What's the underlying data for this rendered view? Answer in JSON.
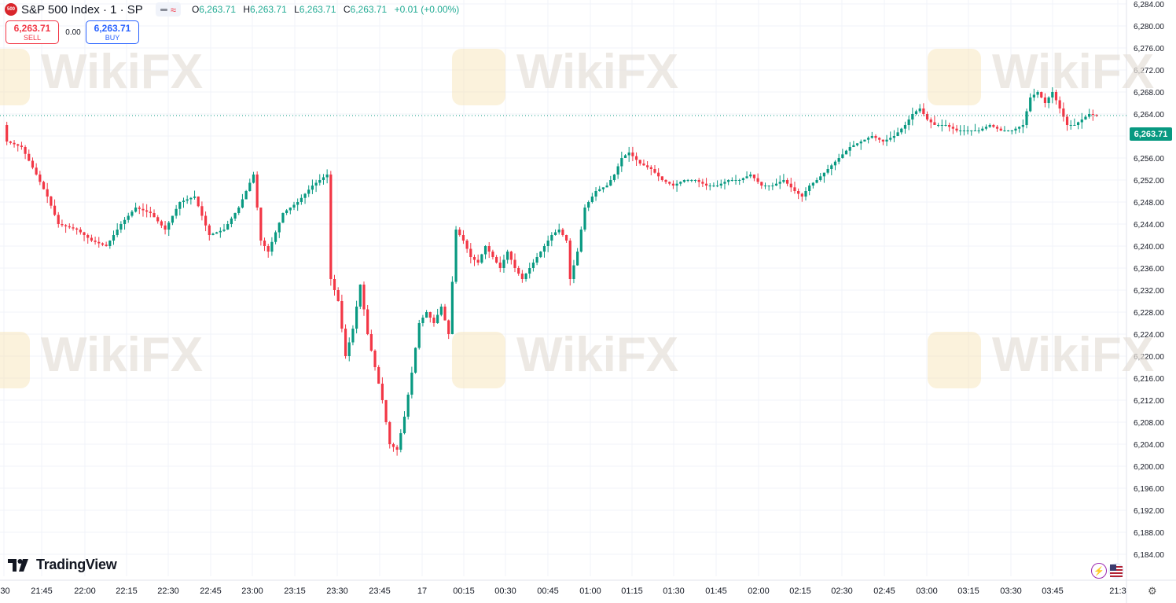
{
  "header": {
    "symbol_badge": "500",
    "title": "S&P 500 Index · 1 · SP",
    "open_label": "O",
    "open": "6,263.71",
    "high_label": "H",
    "high": "6,263.71",
    "low_label": "L",
    "low": "6,263.71",
    "close_label": "C",
    "close": "6,263.71",
    "change": "+0.01 (+0.00%)"
  },
  "trade": {
    "sell_price": "6,263.71",
    "sell_label": "SELL",
    "spread": "0.00",
    "buy_price": "6,263.71",
    "buy_label": "BUY"
  },
  "last_price_tag": "6,263.71",
  "branding": "TradingView",
  "watermark": "WikiFX",
  "colors": {
    "up": "#089981",
    "down": "#f23645",
    "grid": "#f0f3fa",
    "axis_text": "#131722"
  },
  "icons": [
    "lightning-icon",
    "us-flag-icon",
    "settings-icon"
  ],
  "chart_data": {
    "type": "candlestick",
    "title": "S&P 500 Index · 1 · SP",
    "ylim": [
      6182,
      6288
    ],
    "y_ticks": [
      6184,
      6188,
      6192,
      6196,
      6200,
      6204,
      6208,
      6212,
      6216,
      6220,
      6224,
      6228,
      6232,
      6236,
      6240,
      6244,
      6248,
      6252,
      6256,
      6260,
      6264,
      6268,
      6272,
      6276,
      6280,
      6284
    ],
    "y_tick_labels": [
      "6,184.00",
      "6,188.00",
      "6,192.00",
      "6,196.00",
      "6,200.00",
      "6,204.00",
      "6,208.00",
      "6,212.00",
      "6,216.00",
      "6,220.00",
      "6,224.00",
      "6,228.00",
      "6,232.00",
      "6,236.00",
      "6,240.00",
      "6,244.00",
      "6,248.00",
      "6,252.00",
      "6,256.00",
      "6,260.00",
      "6,264.00",
      "6,268.00",
      "6,272.00",
      "6,276.00",
      "6,280.00",
      "6,284.00"
    ],
    "x_tick_labels": [
      ":30",
      "21:45",
      "22:00",
      "22:15",
      "22:30",
      "22:45",
      "23:00",
      "23:15",
      "23:30",
      "23:45",
      "17",
      "00:15",
      "00:30",
      "00:45",
      "01:00",
      "01:15",
      "01:30",
      "01:45",
      "02:00",
      "02:15",
      "02:30",
      "02:45",
      "03:00",
      "03:15",
      "03:30",
      "03:45",
      "21:3"
    ],
    "last_price": 6263.71,
    "price_path": [
      [
        0,
        6262
      ],
      [
        1,
        6259
      ],
      [
        5,
        6258
      ],
      [
        9,
        6253
      ],
      [
        12,
        6249
      ],
      [
        15,
        6244
      ],
      [
        20,
        6243
      ],
      [
        24,
        6241
      ],
      [
        28,
        6240
      ],
      [
        32,
        6244
      ],
      [
        36,
        6247
      ],
      [
        40,
        6246
      ],
      [
        44,
        6243
      ],
      [
        48,
        6248
      ],
      [
        52,
        6249
      ],
      [
        56,
        6242
      ],
      [
        60,
        6243
      ],
      [
        64,
        6247
      ],
      [
        68,
        6253
      ],
      [
        70,
        6241
      ],
      [
        72,
        6239
      ],
      [
        76,
        6246
      ],
      [
        80,
        6248
      ],
      [
        84,
        6251
      ],
      [
        88,
        6253
      ],
      [
        89,
        6234
      ],
      [
        91,
        6230
      ],
      [
        93,
        6220
      ],
      [
        95,
        6225
      ],
      [
        97,
        6233
      ],
      [
        99,
        6224
      ],
      [
        101,
        6218
      ],
      [
        103,
        6212
      ],
      [
        105,
        6204
      ],
      [
        107,
        6203
      ],
      [
        109,
        6209
      ],
      [
        111,
        6217
      ],
      [
        113,
        6226
      ],
      [
        115,
        6228
      ],
      [
        117,
        6226
      ],
      [
        119,
        6229
      ],
      [
        121,
        6224
      ],
      [
        123,
        6243
      ],
      [
        125,
        6241
      ],
      [
        127,
        6238
      ],
      [
        129,
        6237
      ],
      [
        131,
        6240
      ],
      [
        133,
        6238
      ],
      [
        135,
        6236
      ],
      [
        137,
        6239
      ],
      [
        139,
        6236
      ],
      [
        141,
        6234
      ],
      [
        143,
        6236
      ],
      [
        145,
        6238
      ],
      [
        147,
        6240
      ],
      [
        149,
        6242
      ],
      [
        151,
        6243
      ],
      [
        153,
        6241
      ],
      [
        154,
        6234
      ],
      [
        156,
        6239
      ],
      [
        158,
        6247
      ],
      [
        161,
        6250
      ],
      [
        164,
        6251
      ],
      [
        166,
        6253
      ],
      [
        168,
        6256
      ],
      [
        170,
        6257
      ],
      [
        173,
        6255
      ],
      [
        176,
        6254
      ],
      [
        179,
        6252
      ],
      [
        182,
        6251
      ],
      [
        185,
        6252
      ],
      [
        188,
        6252
      ],
      [
        191,
        6251
      ],
      [
        194,
        6251
      ],
      [
        197,
        6252
      ],
      [
        200,
        6252
      ],
      [
        203,
        6253
      ],
      [
        206,
        6251
      ],
      [
        209,
        6251
      ],
      [
        212,
        6252
      ],
      [
        215,
        6250
      ],
      [
        217,
        6249
      ],
      [
        219,
        6251
      ],
      [
        221,
        6252
      ],
      [
        224,
        6254
      ],
      [
        227,
        6256
      ],
      [
        230,
        6258
      ],
      [
        233,
        6259
      ],
      [
        236,
        6260
      ],
      [
        239,
        6259
      ],
      [
        242,
        6260
      ],
      [
        245,
        6262
      ],
      [
        247,
        6264
      ],
      [
        249,
        6265
      ],
      [
        251,
        6263
      ],
      [
        253,
        6262
      ],
      [
        256,
        6262
      ],
      [
        259,
        6261
      ],
      [
        262,
        6261
      ],
      [
        265,
        6261
      ],
      [
        268,
        6262
      ],
      [
        271,
        6261
      ],
      [
        274,
        6261
      ],
      [
        277,
        6262
      ],
      [
        279,
        6267
      ],
      [
        281,
        6268
      ],
      [
        283,
        6266
      ],
      [
        285,
        6268
      ],
      [
        287,
        6265
      ],
      [
        289,
        6262
      ],
      [
        291,
        6262
      ],
      [
        293,
        6263
      ],
      [
        295,
        6264
      ],
      [
        297,
        6263.71
      ]
    ]
  }
}
